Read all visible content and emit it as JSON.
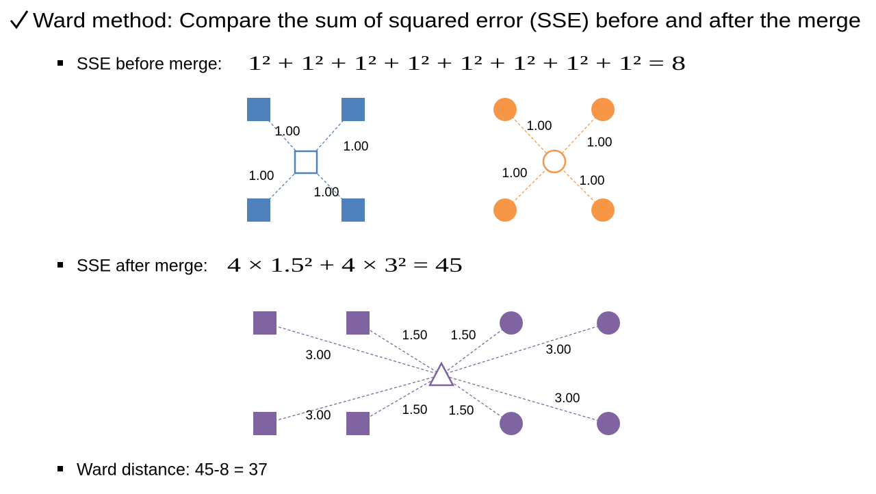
{
  "title": "Ward method: Compare the sum of squared error (SSE) before and after the merge",
  "sections": [
    {
      "label": "SSE before merge:",
      "formula": "1² + 1² + 1² + 1² + 1² + 1² + 1² + 1² = 8"
    },
    {
      "label": "SSE after merge:",
      "formula": "4 × 1.5² + 4 × 3² = 45"
    },
    {
      "label": "Ward distance: 45-8 = 37"
    }
  ],
  "diagram_before": {
    "blue_distances": [
      "1.00",
      "1.00",
      "1.00",
      "1.00"
    ],
    "orange_distances": [
      "1.00",
      "1.00",
      "1.00",
      "1.00"
    ]
  },
  "diagram_after": {
    "distances": [
      "3.00",
      "1.50",
      "1.50",
      "3.00",
      "3.00",
      "1.50",
      "1.50",
      "3.00"
    ]
  }
}
